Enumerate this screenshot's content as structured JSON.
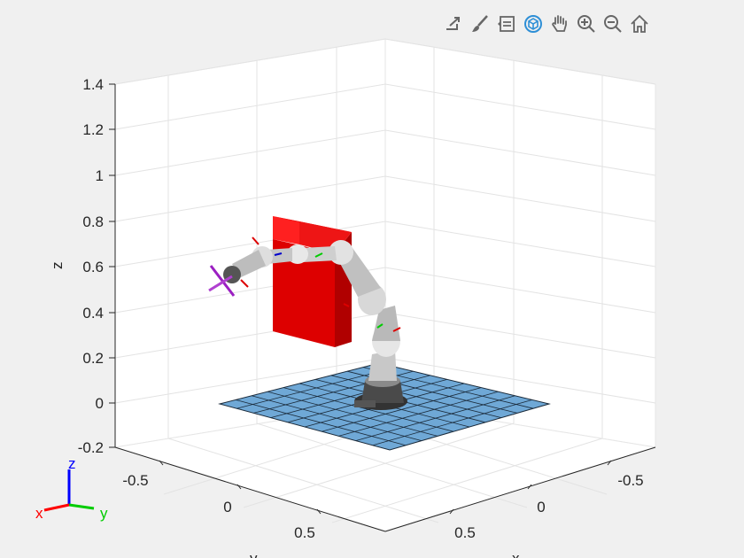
{
  "toolbar": {
    "icons": [
      "export-icon",
      "brush-icon",
      "legend-icon",
      "rotate-3d-icon",
      "pan-hand-icon",
      "zoom-in-icon",
      "zoom-out-icon",
      "home-icon"
    ],
    "active": "rotate-3d-icon",
    "active_color": "#2e8fd6"
  },
  "axes": {
    "z_ticks": [
      "1.4",
      "1.2",
      "1",
      "0.8",
      "0.6",
      "0.4",
      "0.2",
      "0",
      "-0.2"
    ],
    "y_ticks": [
      "-0.5",
      "0",
      "0.5"
    ],
    "x_ticks": [
      "-0.5",
      "0",
      "0.5"
    ],
    "z_label": "z",
    "y_label": "y",
    "x_label": "x",
    "grid": true
  },
  "triad": {
    "x": "x",
    "y": "y",
    "z": "z",
    "x_color": "#ff0000",
    "y_color": "#00cc00",
    "z_color": "#0000ff"
  },
  "scene_objects": {
    "floor_color": "#6fa8d6",
    "obstacle_color": "#e00000",
    "robot": "7-DOF arm, gray links"
  }
}
